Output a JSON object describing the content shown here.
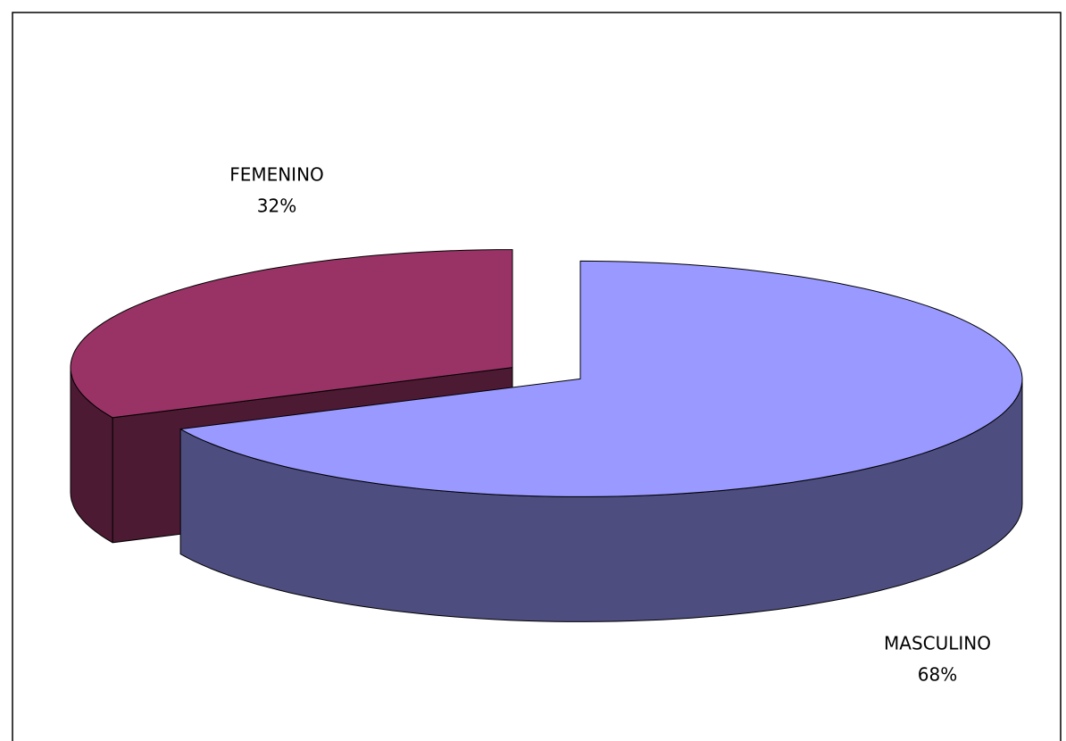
{
  "chart_data": {
    "type": "pie",
    "categories": [
      "FEMENINO",
      "MASCULINO"
    ],
    "values": [
      32,
      68
    ],
    "value_labels": [
      "32%",
      "68%"
    ],
    "colors": [
      "#993366",
      "#9999ff"
    ],
    "three_d": true
  }
}
